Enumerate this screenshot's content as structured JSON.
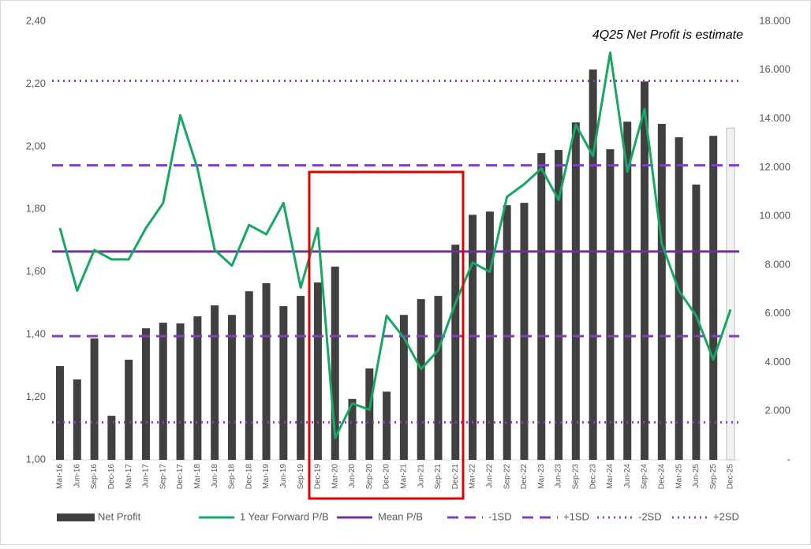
{
  "chart_data": {
    "type": "bar_line",
    "annotation": "4Q25 Net Profit is estimate",
    "categories": [
      "Mar-16",
      "Jun-16",
      "Sep-16",
      "Dec-16",
      "Mar-17",
      "Jun-17",
      "Sep-17",
      "Dec-17",
      "Mar-18",
      "Jun-18",
      "Sep-18",
      "Dec-18",
      "Mar-19",
      "Jun-19",
      "Sep-19",
      "Dec-19",
      "Mar-20",
      "Jun-20",
      "Sep-20",
      "Dec-20",
      "Mar-21",
      "Jun-21",
      "Sep-21",
      "Dec-21",
      "Mar-22",
      "Jun-22",
      "Sep-22",
      "Dec-22",
      "Mar-23",
      "Jun-23",
      "Sep-23",
      "Dec-23",
      "Mar-24",
      "Jun-24",
      "Sep-24",
      "Dec-24",
      "Mar-25",
      "Jun-25",
      "Sep-25",
      "Dec-25"
    ],
    "series": [
      {
        "name": "Net Profit",
        "type": "bar",
        "axis": "y2",
        "color": "#404040",
        "estimate_color": "#f2f2f2",
        "values": [
          3850,
          3300,
          4980,
          1810,
          4110,
          5400,
          5630,
          5600,
          5890,
          6340,
          5950,
          6920,
          7250,
          6310,
          6730,
          7280,
          7930,
          2500,
          3750,
          2800,
          5950,
          6600,
          6730,
          8830,
          10060,
          10190,
          10450,
          10550,
          12590,
          12720,
          13850,
          16020,
          12750,
          13880,
          15530,
          13790,
          13240,
          11300,
          13300,
          13620
        ]
      },
      {
        "name": "1 Year Forward P/B",
        "type": "line",
        "color": "#16a862",
        "values": [
          1.74,
          1.54,
          1.67,
          1.64,
          1.64,
          1.74,
          1.82,
          2.1,
          1.93,
          1.67,
          1.62,
          1.75,
          1.72,
          1.82,
          1.55,
          1.74,
          1.07,
          1.18,
          1.16,
          1.46,
          1.39,
          1.29,
          1.35,
          1.5,
          1.63,
          1.6,
          1.84,
          1.88,
          1.93,
          1.83,
          2.07,
          1.97,
          2.3,
          1.92,
          2.12,
          1.69,
          1.54,
          1.46,
          1.32,
          1.48
        ]
      }
    ],
    "reference_lines": [
      {
        "name": "Mean P/B",
        "value": 1.665,
        "style": "solid",
        "color": "#7030a0"
      },
      {
        "name": "-1SD",
        "value": 1.395,
        "style": "dashed",
        "color": "#8040c0"
      },
      {
        "name": "+1SD",
        "value": 1.94,
        "style": "dashed",
        "color": "#8040c0"
      },
      {
        "name": "-2SD",
        "value": 1.12,
        "style": "dotted",
        "color": "#9040c8"
      },
      {
        "name": "+2SD",
        "value": 2.21,
        "style": "dotted",
        "color": "#9040c8"
      }
    ],
    "ylim": [
      1.0,
      2.4
    ],
    "yticks": [
      {
        "value": 1.0,
        "label": "1,00"
      },
      {
        "value": 1.2,
        "label": "1,20"
      },
      {
        "value": 1.4,
        "label": "1,40"
      },
      {
        "value": 1.6,
        "label": "1,60"
      },
      {
        "value": 1.8,
        "label": "1,80"
      },
      {
        "value": 2.0,
        "label": "2,00"
      },
      {
        "value": 2.2,
        "label": "2,20"
      },
      {
        "value": 2.4,
        "label": "2,40"
      }
    ],
    "y2lim": [
      0,
      18000
    ],
    "y2ticks": [
      {
        "value": 0,
        "label": "-"
      },
      {
        "value": 2000,
        "label": "2.000"
      },
      {
        "value": 4000,
        "label": "4.000"
      },
      {
        "value": 6000,
        "label": "6.000"
      },
      {
        "value": 8000,
        "label": "8.000"
      },
      {
        "value": 10000,
        "label": "10.000"
      },
      {
        "value": 12000,
        "label": "12.000"
      },
      {
        "value": 14000,
        "label": "14.000"
      },
      {
        "value": 16000,
        "label": "16.000"
      },
      {
        "value": 18000,
        "label": "18.000"
      }
    ]
  }
}
